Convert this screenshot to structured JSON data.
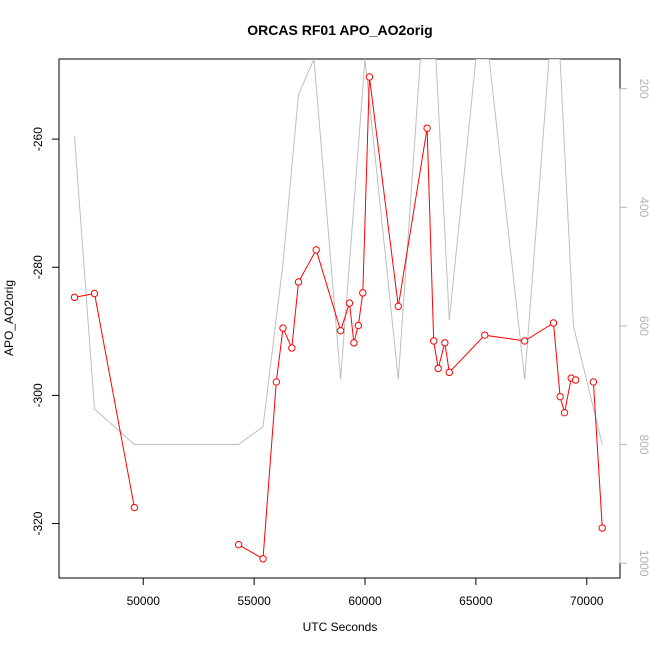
{
  "chart_data": {
    "type": "line",
    "title": "ORCAS RF01 APO_AO2orig",
    "xlabel": "UTC Seconds",
    "ylabel": "APO_AO2orig",
    "xlim": [
      46200,
      71500
    ],
    "ylim": [
      -328.5,
      -247.5
    ],
    "y2lim": [
      1025,
      150
    ],
    "x_ticks": [
      50000,
      55000,
      60000,
      65000,
      70000
    ],
    "y_ticks": [
      -320,
      -300,
      -280,
      -260
    ],
    "y2_ticks": [
      200,
      400,
      600,
      800,
      1000
    ],
    "grid": false,
    "series": [
      {
        "color": "#ff0000",
        "marker": "open-circle",
        "axis": "left",
        "segments": [
          [
            [
              46900,
              -284.7
            ],
            [
              47800,
              -284.1
            ],
            [
              49600,
              -317.5
            ]
          ],
          [
            [
              54300,
              -323.3
            ],
            [
              55400,
              -325.5
            ],
            [
              56000,
              -297.9
            ],
            [
              56300,
              -289.5
            ],
            [
              56700,
              -292.6
            ],
            [
              57000,
              -282.3
            ],
            [
              57800,
              -277.3
            ],
            [
              58900,
              -289.9
            ],
            [
              59300,
              -285.6
            ],
            [
              59500,
              -291.8
            ],
            [
              59700,
              -289.1
            ],
            [
              59900,
              -284.0
            ],
            [
              60200,
              -250.3
            ],
            [
              61500,
              -286.1
            ],
            [
              62800,
              -258.3
            ],
            [
              63100,
              -291.5
            ],
            [
              63300,
              -295.8
            ],
            [
              63600,
              -291.8
            ],
            [
              63800,
              -296.4
            ],
            [
              65400,
              -290.6
            ],
            [
              67200,
              -291.5
            ],
            [
              68500,
              -288.7
            ],
            [
              68800,
              -300.2
            ],
            [
              69000,
              -302.7
            ],
            [
              69300,
              -297.3
            ],
            [
              69500,
              -297.6
            ]
          ],
          [
            [
              70300,
              -297.9
            ],
            [
              70700,
              -320.7
            ]
          ]
        ]
      },
      {
        "color": "#bebebe",
        "marker": "none",
        "axis": "right",
        "values": [
          [
            46900,
            280
          ],
          [
            47800,
            740
          ],
          [
            49600,
            800
          ],
          [
            54300,
            800
          ],
          [
            55400,
            770
          ],
          [
            56300,
            495
          ],
          [
            57000,
            210
          ],
          [
            57700,
            150
          ],
          [
            58900,
            690
          ],
          [
            60000,
            150
          ],
          [
            61500,
            690
          ],
          [
            62500,
            150
          ],
          [
            63200,
            150
          ],
          [
            63800,
            590
          ],
          [
            65000,
            150
          ],
          [
            65600,
            150
          ],
          [
            67200,
            690
          ],
          [
            68300,
            150
          ],
          [
            68800,
            150
          ],
          [
            69400,
            600
          ],
          [
            70700,
            800
          ]
        ]
      }
    ]
  }
}
